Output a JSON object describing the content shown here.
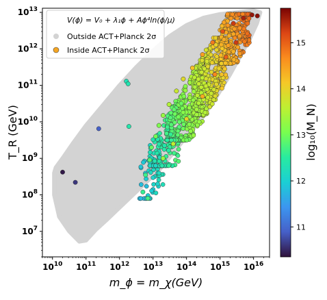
{
  "chart_data": {
    "type": "scatter",
    "title": "",
    "xlabel": "m_ϕ = m_χ(GeV)",
    "ylabel": "T_R (GeV)",
    "colorbar_label": "log₁₀(M_N)",
    "x_scale": "log",
    "y_scale": "log",
    "xlim": [
      5000000000.0,
      3e+16
    ],
    "ylim": [
      2000000.0,
      13000000000000.0
    ],
    "xticks": [
      {
        "value": 10000000000.0,
        "base": "10",
        "exp": "10"
      },
      {
        "value": 100000000000.0,
        "base": "10",
        "exp": "11"
      },
      {
        "value": 1000000000000.0,
        "base": "10",
        "exp": "12"
      },
      {
        "value": 10000000000000.0,
        "base": "10",
        "exp": "13"
      },
      {
        "value": 100000000000000.0,
        "base": "10",
        "exp": "14"
      },
      {
        "value": 1000000000000000.0,
        "base": "10",
        "exp": "15"
      },
      {
        "value": 1e+16,
        "base": "10",
        "exp": "16"
      }
    ],
    "yticks": [
      {
        "value": 10000000.0,
        "base": "10",
        "exp": "7"
      },
      {
        "value": 100000000.0,
        "base": "10",
        "exp": "8"
      },
      {
        "value": 1000000000.0,
        "base": "10",
        "exp": "9"
      },
      {
        "value": 10000000000.0,
        "base": "10",
        "exp": "10"
      },
      {
        "value": 100000000000.0,
        "base": "10",
        "exp": "11"
      },
      {
        "value": 1000000000000.0,
        "base": "10",
        "exp": "12"
      },
      {
        "value": 10000000000000.0,
        "base": "10",
        "exp": "13"
      }
    ],
    "colorbar": {
      "range": [
        10.35,
        15.75
      ],
      "ticks": [
        "11",
        "12",
        "13",
        "14",
        "15"
      ],
      "tick_values": [
        11,
        12,
        13,
        14,
        15
      ],
      "colormap": "turbo"
    },
    "legend": {
      "placement": "top-left",
      "title": "V(ϕ) = V₀ + λ₁ϕ + Aϕ⁴ln(ϕ/μ)",
      "entries": [
        {
          "label": "Outside ACT+Planck 2σ",
          "color": "#d3d3d3"
        },
        {
          "label": "Inside ACT+Planck 2σ",
          "color": "#f5a623"
        }
      ]
    },
    "outside_region": {
      "label": "Outside ACT+Planck 2σ",
      "color": "#d3d3d3",
      "boundary_log10": [
        [
          10.05,
          8.6
        ],
        [
          10.1,
          8.75
        ],
        [
          10.3,
          9.0
        ],
        [
          10.6,
          9.4
        ],
        [
          11.0,
          9.9
        ],
        [
          11.5,
          10.45
        ],
        [
          12.0,
          11.0
        ],
        [
          12.5,
          11.5
        ],
        [
          13.0,
          11.95
        ],
        [
          13.5,
          12.35
        ],
        [
          14.0,
          12.65
        ],
        [
          14.5,
          12.85
        ],
        [
          15.0,
          12.95
        ],
        [
          15.5,
          13.0
        ],
        [
          16.0,
          13.05
        ],
        [
          16.2,
          13.0
        ],
        [
          16.1,
          12.7
        ],
        [
          15.9,
          12.3
        ],
        [
          15.6,
          11.8
        ],
        [
          15.3,
          11.3
        ],
        [
          14.9,
          10.7
        ],
        [
          14.5,
          10.15
        ],
        [
          14.0,
          9.6
        ],
        [
          13.6,
          9.15
        ],
        [
          13.2,
          8.7
        ],
        [
          12.8,
          8.35
        ],
        [
          12.4,
          8.0
        ],
        [
          12.0,
          7.65
        ],
        [
          11.6,
          7.3
        ],
        [
          11.3,
          7.05
        ],
        [
          11.0,
          6.75
        ],
        [
          10.8,
          6.72
        ],
        [
          10.5,
          7.0
        ],
        [
          10.2,
          7.4
        ],
        [
          10.05,
          8.0
        ]
      ]
    },
    "inside_points": [
      {
        "x": 20000000000.0,
        "y": 420000000.0,
        "log10_MN": 10.4
      },
      {
        "x": 48000000000.0,
        "y": 220000000.0,
        "log10_MN": 10.6
      },
      {
        "x": 240000000000.0,
        "y": 6500000000.0,
        "log10_MN": 10.9
      },
      {
        "x": 1600000000000.0,
        "y": 130000000000.0,
        "log10_MN": 12.3
      },
      {
        "x": 1800000000000.0,
        "y": 110000000000.0,
        "log10_MN": 12.35
      },
      {
        "x": 1900000000000.0,
        "y": 7500000000.0,
        "log10_MN": 12.4
      },
      {
        "x": 5000000000000.0,
        "y": 120000000.0,
        "log10_MN": 12.6
      },
      {
        "x": 7000000000000.0,
        "y": 80000000.0,
        "log10_MN": 12.7
      },
      {
        "x": 6000000000000.0,
        "y": 350000000.0,
        "log10_MN": 12.65
      },
      {
        "x": 8000000000000.0,
        "y": 900000000.0,
        "log10_MN": 12.8
      },
      {
        "x": 9000000000000.0,
        "y": 2000000000.0,
        "log10_MN": 12.9
      },
      {
        "x": 12000000000000.0,
        "y": 4000000000.0,
        "log10_MN": 13.0
      },
      {
        "x": 15000000000000.0,
        "y": 8000000000.0,
        "log10_MN": 13.1
      },
      {
        "x": 20000000000000.0,
        "y": 15000000000.0,
        "log10_MN": 13.3
      },
      {
        "x": 30000000000000.0,
        "y": 30000000000.0,
        "log10_MN": 13.5
      },
      {
        "x": 50000000000000.0,
        "y": 70000000000.0,
        "log10_MN": 13.7
      },
      {
        "x": 80000000000000.0,
        "y": 150000000000.0,
        "log10_MN": 13.9
      },
      {
        "x": 150000000000000.0,
        "y": 300000000000.0,
        "log10_MN": 14.2
      },
      {
        "x": 300000000000000.0,
        "y": 700000000000.0,
        "log10_MN": 14.5
      },
      {
        "x": 600000000000000.0,
        "y": 1500000000000.0,
        "log10_MN": 14.8
      },
      {
        "x": 1200000000000000.0,
        "y": 3000000000000.0,
        "log10_MN": 15.1
      },
      {
        "x": 2500000000000000.0,
        "y": 5000000000000.0,
        "log10_MN": 15.3
      },
      {
        "x": 5000000000000000.0,
        "y": 7000000000000.0,
        "log10_MN": 15.5
      },
      {
        "x": 9000000000000000.0,
        "y": 8500000000000.0,
        "log10_MN": 15.6
      },
      {
        "x": 1.3e+16,
        "y": 8000000000000.0,
        "log10_MN": 15.65
      },
      {
        "x": 300000000000000.0,
        "y": 50000000000.0,
        "log10_MN": 14.4
      },
      {
        "x": 700000000000000.0,
        "y": 200000000000.0,
        "log10_MN": 14.7
      },
      {
        "x": 1500000000000000.0,
        "y": 600000000000.0,
        "log10_MN": 15.0
      },
      {
        "x": 3000000000000000.0,
        "y": 1500000000000.0,
        "log10_MN": 15.3
      },
      {
        "x": 100000000000000.0,
        "y": 12000000000.0,
        "log10_MN": 14.0
      },
      {
        "x": 40000000000000.0,
        "y": 2500000000.0,
        "log10_MN": 13.6
      },
      {
        "x": 20000000000000.0,
        "y": 1000000000.0,
        "log10_MN": 13.3
      }
    ],
    "point_clusters": [
      {
        "x_log": [
          12.6,
          13.3
        ],
        "y_log": [
          7.9,
          9.5
        ],
        "count": 60
      },
      {
        "x_log": [
          12.9,
          13.8
        ],
        "y_log": [
          8.8,
          10.6
        ],
        "count": 160
      },
      {
        "x_log": [
          13.4,
          14.5
        ],
        "y_log": [
          9.5,
          11.6
        ],
        "count": 320
      },
      {
        "x_log": [
          14.2,
          15.2
        ],
        "y_log": [
          10.2,
          12.3
        ],
        "count": 380
      },
      {
        "x_log": [
          15.0,
          15.9
        ],
        "y_log": [
          11.6,
          12.95
        ],
        "count": 300
      }
    ]
  }
}
